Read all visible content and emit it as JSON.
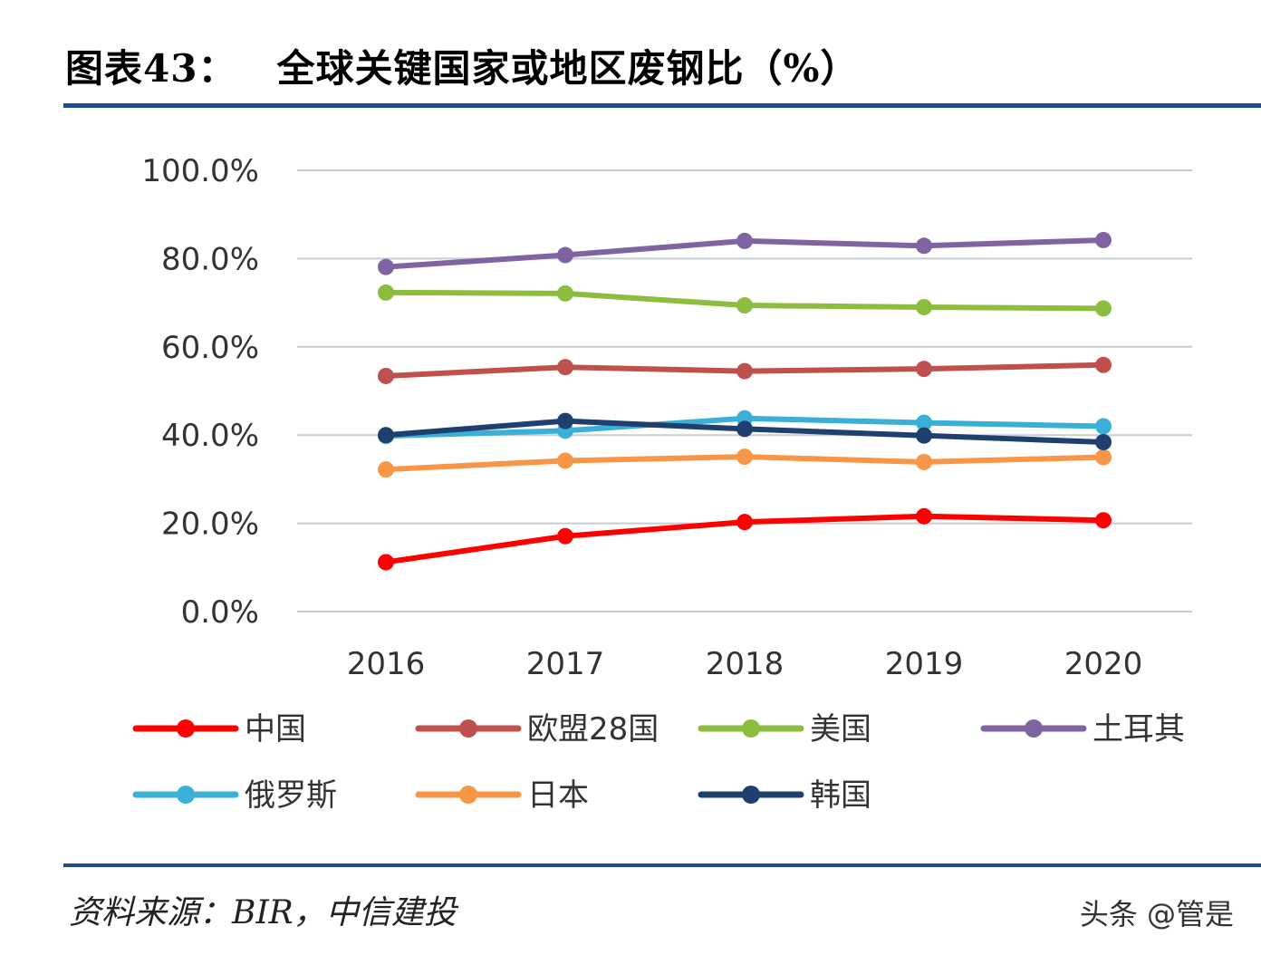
{
  "header": {
    "figure_number": "图表43：",
    "title": "全球关键国家或地区废钢比（%）"
  },
  "footer": {
    "source": "资料来源：BIR，中信建投",
    "watermark": "头条 @管是"
  },
  "chart_data": {
    "type": "line",
    "title": "全球关键国家或地区废钢比（%）",
    "categories": [
      "2016",
      "2017",
      "2018",
      "2019",
      "2020"
    ],
    "ylim": [
      0,
      100
    ],
    "yticks": [
      "0.0%",
      "20.0%",
      "40.0%",
      "60.0%",
      "80.0%",
      "100.0%"
    ],
    "grid": true,
    "legend_position": "bottom",
    "series": [
      {
        "name": "中国",
        "color": "#ff0000",
        "values": [
          11.2,
          17.1,
          20.3,
          21.6,
          20.7
        ]
      },
      {
        "name": "欧盟28国",
        "color": "#c0504d",
        "values": [
          53.4,
          55.4,
          54.5,
          55.0,
          55.9
        ]
      },
      {
        "name": "美国",
        "color": "#8cbd3f",
        "values": [
          72.3,
          72.1,
          69.4,
          69.0,
          68.7
        ]
      },
      {
        "name": "土耳其",
        "color": "#8064a2",
        "values": [
          78.1,
          80.8,
          84.0,
          82.9,
          84.2
        ]
      },
      {
        "name": "俄罗斯",
        "color": "#3ab0d8",
        "values": [
          39.8,
          41.0,
          43.8,
          42.8,
          42.0
        ]
      },
      {
        "name": "日本",
        "color": "#f79646",
        "values": [
          32.2,
          34.2,
          35.1,
          33.9,
          35.0
        ]
      },
      {
        "name": "韩国",
        "color": "#1f3f6e",
        "values": [
          40.0,
          43.2,
          41.4,
          39.9,
          38.4
        ]
      }
    ]
  }
}
